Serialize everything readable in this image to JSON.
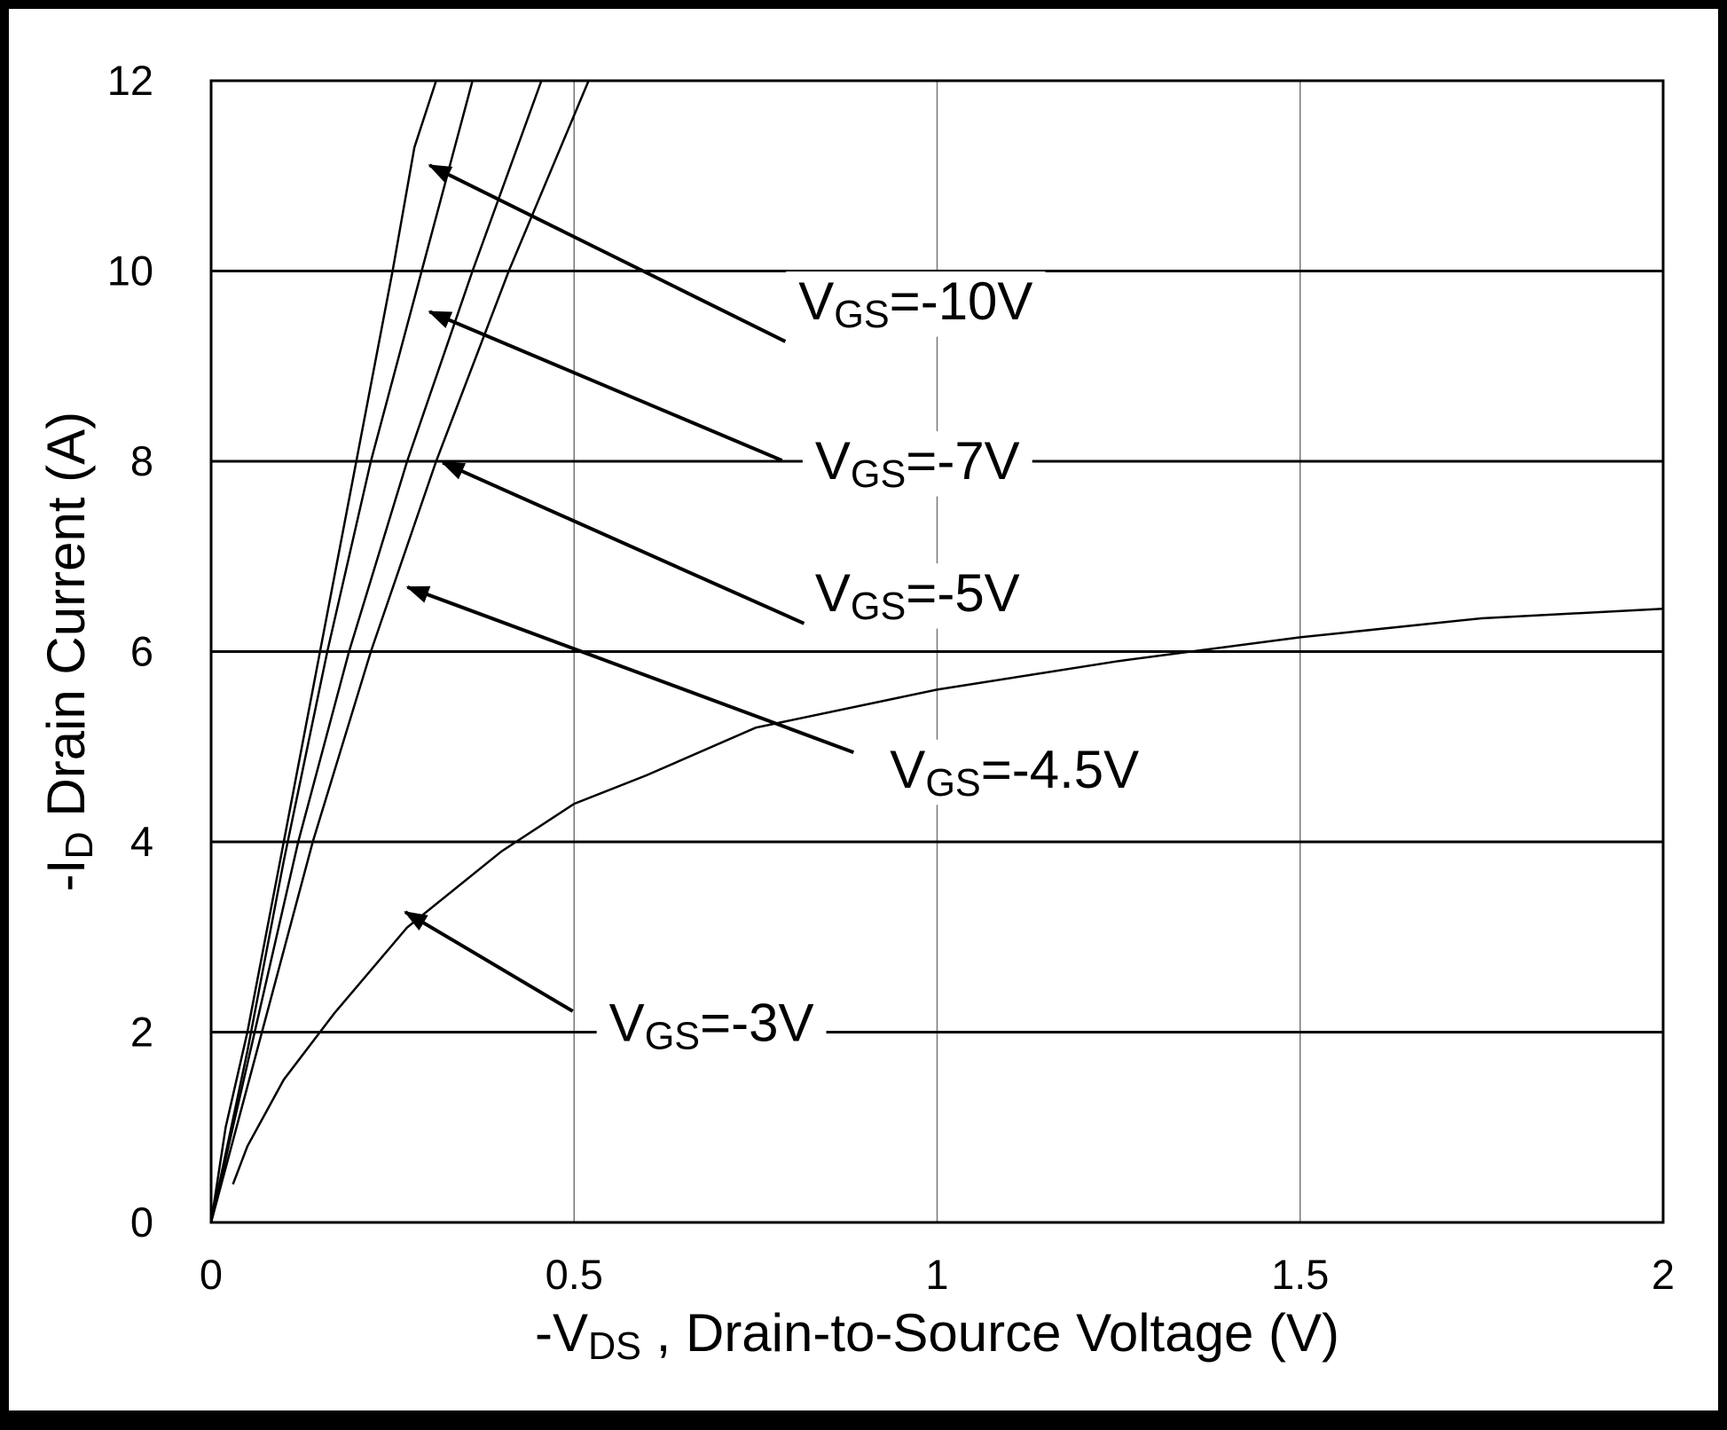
{
  "chart_data": {
    "type": "line",
    "x_label": "-VDS , Drain-to-Source Voltage (V)",
    "y_label": "-ID Drain Current (A)",
    "xlim": [
      0,
      2
    ],
    "xticks": [
      0,
      0.5,
      1,
      1.5,
      2
    ],
    "ylim": [
      0,
      12
    ],
    "yticks": [
      0,
      2,
      4,
      6,
      8,
      10,
      12
    ],
    "grid": true,
    "series": [
      {
        "name": "VGS=-10V",
        "color": "#000000",
        "x": [
          0,
          0.02,
          0.05,
          0.1,
          0.15,
          0.2,
          0.25,
          0.28,
          0.31
        ],
        "values": [
          0,
          1,
          2,
          4,
          6,
          8,
          10,
          11.3,
          12
        ]
      },
      {
        "name": "VGS=-7V",
        "color": "#000000",
        "x": [
          0,
          0.05,
          0.1,
          0.16,
          0.22,
          0.29,
          0.36
        ],
        "values": [
          0,
          1.8,
          3.8,
          6,
          8,
          10,
          12
        ]
      },
      {
        "name": "VGS=-5V",
        "color": "#000000",
        "x": [
          0,
          0.06,
          0.12,
          0.19,
          0.27,
          0.36,
          0.455
        ],
        "values": [
          0,
          2,
          4,
          6,
          8,
          10,
          12
        ]
      },
      {
        "name": "VGS=-4.5V",
        "color": "#000000",
        "x": [
          0,
          0.07,
          0.14,
          0.22,
          0.31,
          0.41,
          0.52
        ],
        "values": [
          0,
          2,
          4,
          6,
          8,
          10,
          12
        ]
      },
      {
        "name": "VGS=-3V",
        "color": "#000000",
        "x": [
          0.03,
          0.05,
          0.1,
          0.17,
          0.27,
          0.4,
          0.5,
          0.6,
          0.75,
          1,
          1.25,
          1.5,
          1.75,
          2
        ],
        "values": [
          0.4,
          0.8,
          1.5,
          2.2,
          3.1,
          3.9,
          4.4,
          4.7,
          5.2,
          5.6,
          5.9,
          6.15,
          6.35,
          6.45
        ]
      }
    ]
  }
}
